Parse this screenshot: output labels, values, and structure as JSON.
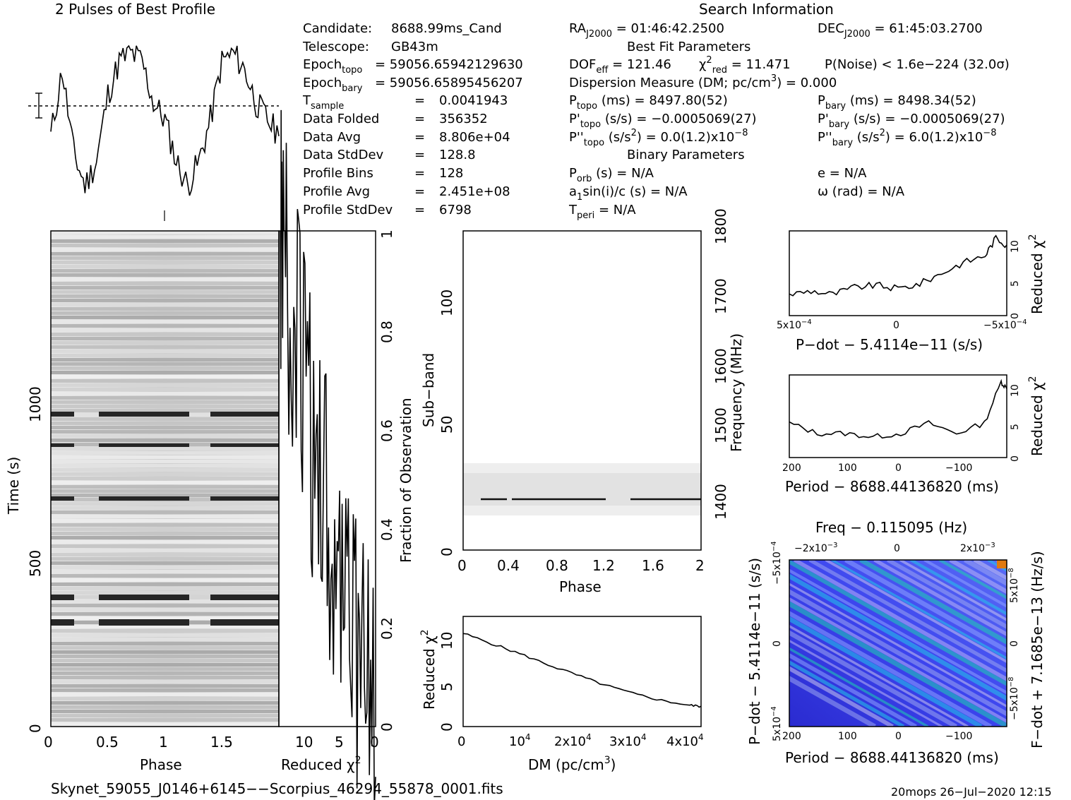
{
  "profile_title": "2 Pulses of Best Profile",
  "search_title": "Search Information",
  "info_col1": [
    [
      "Candidate:",
      "8688.99ms_Cand"
    ],
    [
      "Telescope:",
      "GB43m"
    ],
    [
      "Epoch",
      "topo",
      "= 59056.65942129630"
    ],
    [
      "Epoch",
      "bary",
      "= 59056.65895456207"
    ],
    [
      "T",
      "sample",
      "=",
      "0.0041943"
    ],
    [
      "Data Folded",
      "=",
      "356352"
    ],
    [
      "Data Avg",
      "=",
      "8.806e+04"
    ],
    [
      "Data StdDev",
      "=",
      "128.8"
    ],
    [
      "Profile Bins",
      "=",
      "128"
    ],
    [
      "Profile Avg",
      "=",
      "2.451e+08"
    ],
    [
      "Profile StdDev",
      "=",
      "6798"
    ]
  ],
  "info": {
    "ra": "= 01:46:42.2500",
    "dec": "= 61:45:03.2700",
    "best_fit_header": "Best Fit Parameters",
    "dof_val": "= 121.46",
    "chi2_val": "= 11.471",
    "pnoise": "P(Noise) < 1.6e−224   (32.0σ)",
    "dm_line": "Dispersion Measure (DM; pc/cm",
    "dm_val": ") = 0.000",
    "ptopo": "(ms) =  8497.80(52)",
    "pbary": "(ms) =  8498.34(52)",
    "pdtopo": "(s/s) = −0.0005069(27)",
    "pdbary": "(s/s) = −0.0005069(27)",
    "pddtopo": "(s/s",
    "pddtopo_val": ") = 0.0(1.2)x10",
    "pddbary_val": ") =  6.0(1.2)x10",
    "binary_header": "Binary Parameters",
    "porb": "(s) = N/A",
    "ecc": "e = N/A",
    "a1": "sin(i)/c (s) = N/A",
    "omega": "ω (rad) = N/A",
    "tperi": "= N/A"
  },
  "labels": {
    "phase": "Phase",
    "time": "Time (s)",
    "reduced_chi2": "Reduced χ",
    "fraction_obs": "Fraction of Observation",
    "subband": "Sub−band",
    "frequency": "Frequency (MHz)",
    "dm_axis": "DM (pc/cm",
    "pdot_axis": "P−dot − 5.4114e−11 (s/s)",
    "period_axis": "Period − 8688.44136820 (ms)",
    "freq_axis": "Freq − 0.115095 (Hz)",
    "fdot_axis": "F−dot + 7.1685e−13 (Hz/s)"
  },
  "footer": {
    "filename": "Skynet_59055_J0146+6145−−Scorpius_46294_55878_0001.fits",
    "stamp": "20mops 26−Jul−2020 12:15"
  },
  "chart_data": [
    {
      "type": "line",
      "name": "profile",
      "title": "2 Pulses of Best Profile",
      "xlim": [
        0,
        2
      ],
      "x": [
        0,
        0.1,
        0.2,
        0.3,
        0.4,
        0.5,
        0.6,
        0.7,
        0.8,
        0.9,
        1.0,
        1.1,
        1.2,
        1.3,
        1.4,
        1.5,
        1.6,
        1.7,
        1.8,
        1.9,
        2.0
      ],
      "y": [
        0.35,
        0.75,
        0.25,
        0.05,
        0.2,
        0.6,
        0.8,
        0.85,
        0.8,
        0.55,
        0.45,
        0.2,
        0.05,
        0.2,
        0.45,
        0.8,
        0.85,
        0.75,
        0.55,
        0.45,
        0.35
      ]
    },
    {
      "type": "heatmap",
      "name": "time-phase",
      "xlabel": "Phase",
      "ylabel": "Time (s)",
      "xlim": [
        0,
        2
      ],
      "ylim": [
        0,
        1500
      ],
      "x_ticks": [
        "0",
        "0.5",
        "1",
        "1.5"
      ],
      "y_ticks": [
        "0",
        "500",
        "1000"
      ],
      "right_ticks": [
        "0",
        "0.2",
        "0.4",
        "0.6",
        "0.8",
        "1"
      ]
    },
    {
      "type": "line",
      "name": "chi2-vs-time",
      "xlabel": "Reduced χ2",
      "xlim": [
        0,
        13
      ],
      "ylim": [
        0,
        1
      ],
      "x_ticks": [
        "10",
        "5",
        "0"
      ],
      "x": [
        0,
        1,
        2,
        3,
        4,
        5,
        6,
        7,
        8,
        9,
        10,
        11,
        12,
        12.6,
        12.8
      ],
      "y": [
        0,
        0.06,
        0.12,
        0.21,
        0.28,
        0.35,
        0.41,
        0.47,
        0.55,
        0.62,
        0.72,
        0.82,
        0.9,
        0.95,
        1.0
      ]
    },
    {
      "type": "heatmap",
      "name": "subband-phase",
      "xlabel": "Phase",
      "ylabel": "Sub−band",
      "xlim": [
        0,
        2
      ],
      "ylim": [
        0,
        128
      ],
      "x_ticks": [
        "0",
        "0.4",
        "0.8",
        "1.2",
        "1.6",
        "2"
      ],
      "y_ticks": [
        "0",
        "50",
        "100"
      ],
      "right_ticks": [
        "1400",
        "1500",
        "1600",
        "1700",
        "1800"
      ]
    },
    {
      "type": "line",
      "name": "chi2-vs-dm",
      "xlabel": "DM (pc/cm3)",
      "ylabel": "Reduced χ2",
      "xlim": [
        0,
        42000
      ],
      "ylim": [
        0,
        13
      ],
      "x_ticks": [
        "0",
        "10",
        "2x10",
        "3x10",
        "4x10"
      ],
      "y_ticks": [
        "0",
        "5",
        "10"
      ],
      "x": [
        0,
        5000,
        10000,
        15000,
        20000,
        25000,
        30000,
        35000,
        40000,
        42000
      ],
      "y": [
        11,
        9.8,
        8.6,
        7.3,
        6.1,
        4.9,
        3.9,
        3.1,
        2.5,
        2.4
      ]
    },
    {
      "type": "line",
      "name": "chi2-vs-pdot",
      "xlabel": "P−dot − 5.4114e−11 (s/s)",
      "ylabel": "Reduced χ2",
      "xlim": [
        0.0005,
        -0.0005
      ],
      "ylim": [
        0,
        12
      ],
      "x_ticks": [
        "5x10",
        "0",
        "−5x10"
      ],
      "y_ticks": [
        "0",
        "5",
        "10"
      ],
      "x": [
        0.0005,
        0.0004,
        0.0003,
        0.0002,
        0.0001,
        0,
        -0.0001,
        -0.0002,
        -0.0003,
        -0.0004,
        -0.00045,
        -0.0005
      ],
      "y": [
        3,
        3.5,
        3,
        4,
        4.3,
        3.8,
        4.5,
        6,
        7.5,
        8.5,
        11,
        10
      ]
    },
    {
      "type": "line",
      "name": "chi2-vs-period",
      "xlabel": "Period − 8688.44136820 (ms)",
      "ylabel": "Reduced χ2",
      "xlim": [
        200,
        -190
      ],
      "ylim": [
        0,
        12
      ],
      "x_ticks": [
        "200",
        "100",
        "0",
        "−100"
      ],
      "y_ticks": [
        "0",
        "5",
        "10"
      ],
      "x": [
        200,
        150,
        100,
        50,
        0,
        -50,
        -100,
        -150,
        -180,
        -190
      ],
      "y": [
        5,
        3.5,
        3.5,
        3,
        3.5,
        5,
        3.5,
        5,
        11,
        10
      ]
    },
    {
      "type": "heatmap",
      "name": "period-pdot",
      "xlabel": "Period − 8688.44136820 (ms)",
      "ylabel": "P−dot − 5.4114e−11 (s/s)",
      "x_ticks": [
        "200",
        "100",
        "0",
        "−100"
      ],
      "top_ticks": [
        "−2x10",
        "0",
        "2x10"
      ],
      "y_ticks": [
        "5x10",
        "0",
        "−5x10"
      ],
      "right_ticks": [
        "−5x10",
        "0",
        "5x10"
      ]
    }
  ]
}
